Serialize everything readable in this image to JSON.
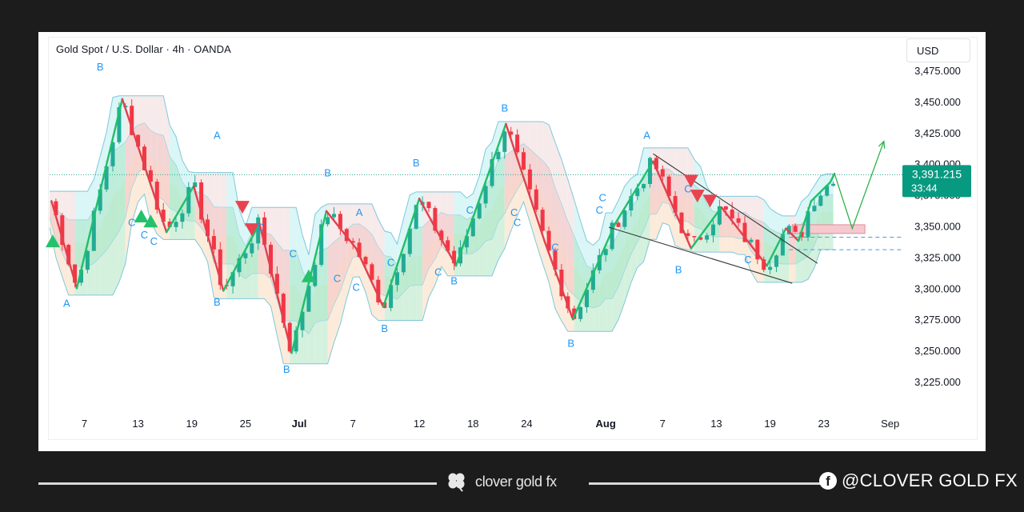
{
  "header": {
    "title": "Gold Spot / U.S. Dollar · 4h · OANDA",
    "currency_button": "USD"
  },
  "price_badge": {
    "price": "3,391.215",
    "countdown": "33:44",
    "color": "#089981"
  },
  "footer": {
    "brand": "clover gold fx",
    "social": "@CLOVER GOLD FX"
  },
  "colors": {
    "up": "#22ab94",
    "down": "#f23645",
    "wave": "#2196f3",
    "bull_zone": "#c8f0dc",
    "bear_zone": "#f8d6d6"
  },
  "chart_data": {
    "type": "line",
    "symbol": "XAUUSD",
    "interval": "4h",
    "y_axis": {
      "ticks": [
        "3,225.000",
        "3,250.000",
        "3,275.000",
        "3,300.000",
        "3,325.000",
        "3,350.000",
        "3,375.000",
        "3,400.000",
        "3,425.000",
        "3,450.000",
        "3,475.000"
      ],
      "ylim": [
        3210,
        3490
      ]
    },
    "x_axis": {
      "ticks": [
        "7",
        "13",
        "19",
        "25",
        "Jul",
        "7",
        "12",
        "18",
        "24",
        "Aug",
        "7",
        "13",
        "19",
        "23",
        "Sep"
      ],
      "bold_ticks": [
        "Jul",
        "Aug"
      ]
    },
    "zigzag": [
      {
        "t": 0.3,
        "p": 3370
      },
      {
        "t": 4.3,
        "p": 3300
      },
      {
        "t": 11.5,
        "p": 3452
      },
      {
        "t": 18.5,
        "p": 3345
      },
      {
        "t": 22.8,
        "p": 3382
      },
      {
        "t": 27.5,
        "p": 3298
      },
      {
        "t": 33.2,
        "p": 3352
      },
      {
        "t": 38.3,
        "p": 3248
      },
      {
        "t": 43.8,
        "p": 3362
      },
      {
        "t": 48.5,
        "p": 3332
      },
      {
        "t": 52.8,
        "p": 3285
      },
      {
        "t": 58.5,
        "p": 3372
      },
      {
        "t": 64.3,
        "p": 3318
      },
      {
        "t": 72.2,
        "p": 3432
      },
      {
        "t": 78.3,
        "p": 3338
      },
      {
        "t": 82.8,
        "p": 3275
      },
      {
        "t": 89.5,
        "p": 3352
      },
      {
        "t": 95.5,
        "p": 3402
      },
      {
        "t": 101.5,
        "p": 3332
      },
      {
        "t": 106.3,
        "p": 3365
      },
      {
        "t": 113.5,
        "p": 3318
      },
      {
        "t": 116.5,
        "p": 3348
      },
      {
        "t": 118.5,
        "p": 3338
      },
      {
        "t": 120.5,
        "p": 3370
      },
      {
        "t": 123.5,
        "p": 3385
      },
      {
        "t": 124.2,
        "p": 3392
      }
    ],
    "wave_labels": [
      {
        "t": 8.0,
        "p": 3475,
        "text": "B"
      },
      {
        "t": 2.7,
        "p": 3285,
        "text": "A"
      },
      {
        "t": 13.0,
        "p": 3350,
        "text": "C"
      },
      {
        "t": 15.0,
        "p": 3340,
        "text": "C"
      },
      {
        "t": 16.5,
        "p": 3335,
        "text": "C"
      },
      {
        "t": 26.5,
        "p": 3420,
        "text": "A"
      },
      {
        "t": 26.5,
        "p": 3286,
        "text": "B"
      },
      {
        "t": 33.3,
        "p": 3346,
        "text": "C"
      },
      {
        "t": 37.5,
        "p": 3232,
        "text": "B"
      },
      {
        "t": 38.5,
        "p": 3325,
        "text": "C"
      },
      {
        "t": 44.0,
        "p": 3390,
        "text": "B"
      },
      {
        "t": 49.0,
        "p": 3358,
        "text": "A"
      },
      {
        "t": 45.5,
        "p": 3305,
        "text": "C"
      },
      {
        "t": 48.5,
        "p": 3298,
        "text": "C"
      },
      {
        "t": 53.0,
        "p": 3265,
        "text": "B"
      },
      {
        "t": 54.0,
        "p": 3318,
        "text": "C"
      },
      {
        "t": 58.0,
        "p": 3398,
        "text": "B"
      },
      {
        "t": 61.5,
        "p": 3310,
        "text": "C"
      },
      {
        "t": 64.0,
        "p": 3303,
        "text": "B"
      },
      {
        "t": 66.5,
        "p": 3360,
        "text": "C"
      },
      {
        "t": 72.0,
        "p": 3442,
        "text": "B"
      },
      {
        "t": 73.5,
        "p": 3358,
        "text": "C"
      },
      {
        "t": 74.0,
        "p": 3350,
        "text": "C"
      },
      {
        "t": 80.0,
        "p": 3330,
        "text": "C"
      },
      {
        "t": 82.5,
        "p": 3253,
        "text": "B"
      },
      {
        "t": 87.5,
        "p": 3370,
        "text": "C"
      },
      {
        "t": 87.0,
        "p": 3360,
        "text": "C"
      },
      {
        "t": 94.5,
        "p": 3420,
        "text": "A"
      },
      {
        "t": 99.5,
        "p": 3312,
        "text": "B"
      },
      {
        "t": 101.0,
        "p": 3377,
        "text": "C"
      },
      {
        "t": 110.5,
        "p": 3320,
        "text": "C"
      }
    ],
    "buy_signals": [
      {
        "t": 0.5,
        "p": 3338
      },
      {
        "t": 14.5,
        "p": 3358
      },
      {
        "t": 16.0,
        "p": 3354
      },
      {
        "t": 41.0,
        "p": 3310
      }
    ],
    "sell_signals": [
      {
        "t": 30.5,
        "p": 3365
      },
      {
        "t": 32.0,
        "p": 3347
      },
      {
        "t": 101.5,
        "p": 3386
      },
      {
        "t": 102.5,
        "p": 3374
      },
      {
        "t": 104.5,
        "p": 3370
      }
    ],
    "trendlines": [
      {
        "from": {
          "t": 95.5,
          "p": 3408
        },
        "to": {
          "t": 121.5,
          "p": 3320
        }
      },
      {
        "from": {
          "t": 88.5,
          "p": 3349
        },
        "to": {
          "t": 117.5,
          "p": 3304
        }
      }
    ],
    "demand_zone": {
      "t_start": 117.5,
      "t_end": 129.0,
      "p_low": 3344,
      "p_high": 3351
    },
    "dashed_levels": [
      3341,
      3331
    ],
    "current_price_line": 3391.215,
    "projection": [
      {
        "t": 124.2,
        "p": 3392
      },
      {
        "t": 127.0,
        "p": 3348
      },
      {
        "t": 132.0,
        "p": 3418
      }
    ]
  }
}
